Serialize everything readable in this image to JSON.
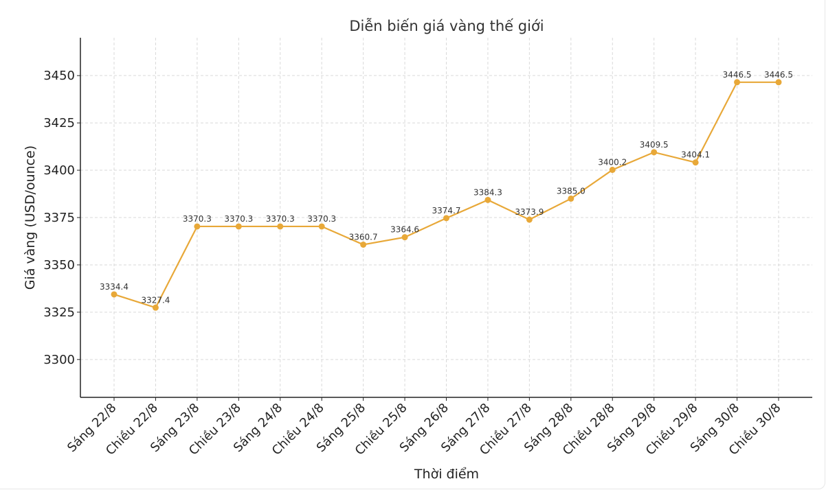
{
  "chart_data": {
    "type": "line",
    "title": "Diễn biến giá vàng thế giới",
    "xlabel": "Thời điểm",
    "ylabel": "Giá vàng (USD/ounce)",
    "categories": [
      "Sáng 22/8",
      "Chiều 22/8",
      "Sáng 23/8",
      "Chiều 23/8",
      "Sáng 24/8",
      "Chiều 24/8",
      "Sáng 25/8",
      "Chiều 25/8",
      "Sáng 26/8",
      "Sáng 27/8",
      "Chiều 27/8",
      "Sáng 28/8",
      "Chiều 28/8",
      "Sáng 29/8",
      "Chiều 29/8",
      "Sáng 30/8",
      "Chiều 30/8"
    ],
    "series": [
      {
        "values": [
          3334.4,
          3327.4,
          3370.3,
          3370.3,
          3370.3,
          3370.3,
          3360.7,
          3364.6,
          3374.7,
          3384.3,
          3373.9,
          3385.0,
          3400.2,
          3409.5,
          3404.1,
          3446.5,
          3446.5
        ],
        "labels": [
          "3334.4",
          "3327.4",
          "3370.3",
          "3370.3",
          "3370.3",
          "3370.3",
          "3360.7",
          "3364.6",
          "3374.7",
          "3384.3",
          "3373.9",
          "3385.0",
          "3400.2",
          "3409.5",
          "3404.1",
          "3446.5",
          "3446.5"
        ]
      }
    ],
    "yticks": [
      3300,
      3325,
      3350,
      3375,
      3400,
      3425,
      3450
    ],
    "ylim": [
      3280,
      3470
    ],
    "grid": true,
    "color": "#E8A838"
  }
}
